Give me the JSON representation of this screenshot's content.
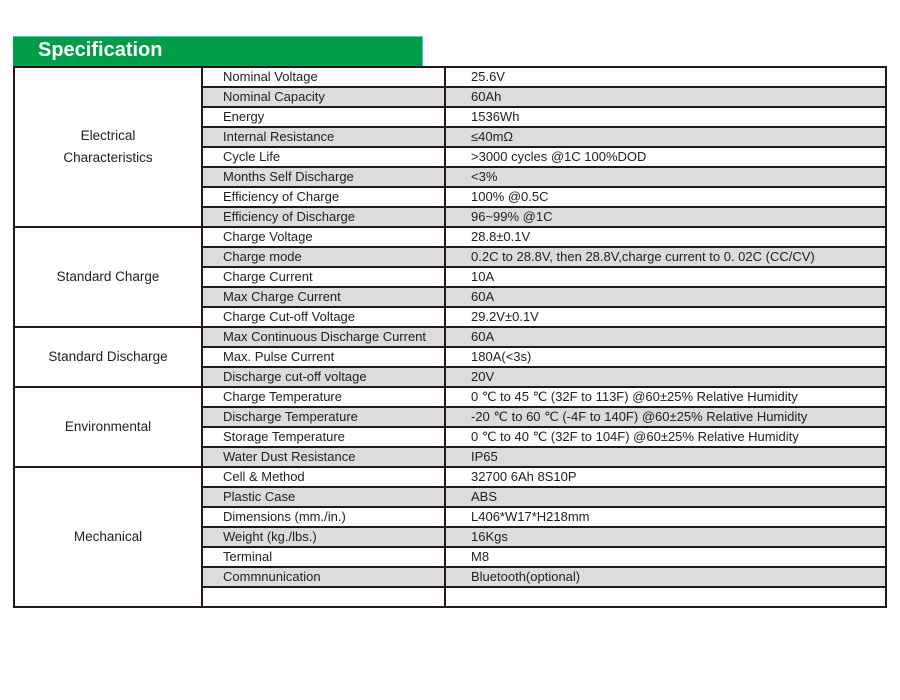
{
  "header": {
    "title": "Specification",
    "color": "#009e49"
  },
  "row_shade_color": "#dcdcdc",
  "groups": [
    {
      "name": "Electrical Characteristics",
      "lines": [
        "Electrical",
        "Characteristics"
      ],
      "rows": [
        {
          "label": "Nominal Voltage",
          "value": "25.6V"
        },
        {
          "label": "Nominal Capacity",
          "value": "60Ah"
        },
        {
          "label": "Energy",
          "value": "1536Wh"
        },
        {
          "label": "Internal Resistance",
          "value": "≤40mΩ"
        },
        {
          "label": "Cycle Life",
          "value": ">3000 cycles @1C 100%DOD"
        },
        {
          "label": "Months Self Discharge",
          "value": "<3%"
        },
        {
          "label": "Efficiency of  Charge",
          "value": "100% @0.5C"
        },
        {
          "label": "Efficiency of  Discharge",
          "value": "96~99% @1C"
        }
      ]
    },
    {
      "name": "Standard Charge",
      "lines": [
        "Standard Charge"
      ],
      "rows": [
        {
          "label": "Charge Voltage",
          "value": "28.8±0.1V"
        },
        {
          "label": "Charge mode",
          "value": "0.2C to 28.8V, then 28.8V,charge current to 0. 02C (CC/CV)"
        },
        {
          "label": "Charge Current",
          "value": "10A"
        },
        {
          "label": "Max Charge Current",
          "value": "60A"
        },
        {
          "label": "Charge Cut-off  Voltage",
          "value": "29.2V±0.1V"
        }
      ]
    },
    {
      "name": "Standard Discharge",
      "lines": [
        "Standard Discharge"
      ],
      "rows": [
        {
          "label": "Max Continuous Discharge Current",
          "value": "60A"
        },
        {
          "label": "Max. Pulse Current",
          "value": "180A(<3s)"
        },
        {
          "label": "Discharge cut-off voltage",
          "value": "20V"
        }
      ]
    },
    {
      "name": "Environmental",
      "lines": [
        "Environmental"
      ],
      "rows": [
        {
          "label": "Charge Temperature",
          "value": "0 ℃  to 45 ℃  (32F to 113F) @60±25% Relative Humidity"
        },
        {
          "label": "Discharge Temperature",
          "value": "-20 ℃  to 60 ℃  (-4F to 140F) @60±25% Relative Humidity"
        },
        {
          "label": "Storage Temperature",
          "value": "0 ℃  to 40 ℃  (32F to 104F) @60±25% Relative Humidity"
        },
        {
          "label": "Water Dust Resistance",
          "value": "IP65"
        }
      ]
    },
    {
      "name": "Mechanical",
      "lines": [
        "Mechanical"
      ],
      "rows": [
        {
          "label": "Cell & Method",
          "value": "32700  6Ah 8S10P"
        },
        {
          "label": "Plastic Case",
          "value": "ABS"
        },
        {
          "label": "Dimensions (mm./in.)",
          "value": "L406*W17*H218mm"
        },
        {
          "label": "Weight (kg./lbs.)",
          "value": "16Kgs"
        },
        {
          "label": "Terminal",
          "value": "M8"
        },
        {
          "label": "Commnunication",
          "value": "Bluetooth(optional)"
        },
        {
          "label": "",
          "value": ""
        }
      ]
    }
  ]
}
